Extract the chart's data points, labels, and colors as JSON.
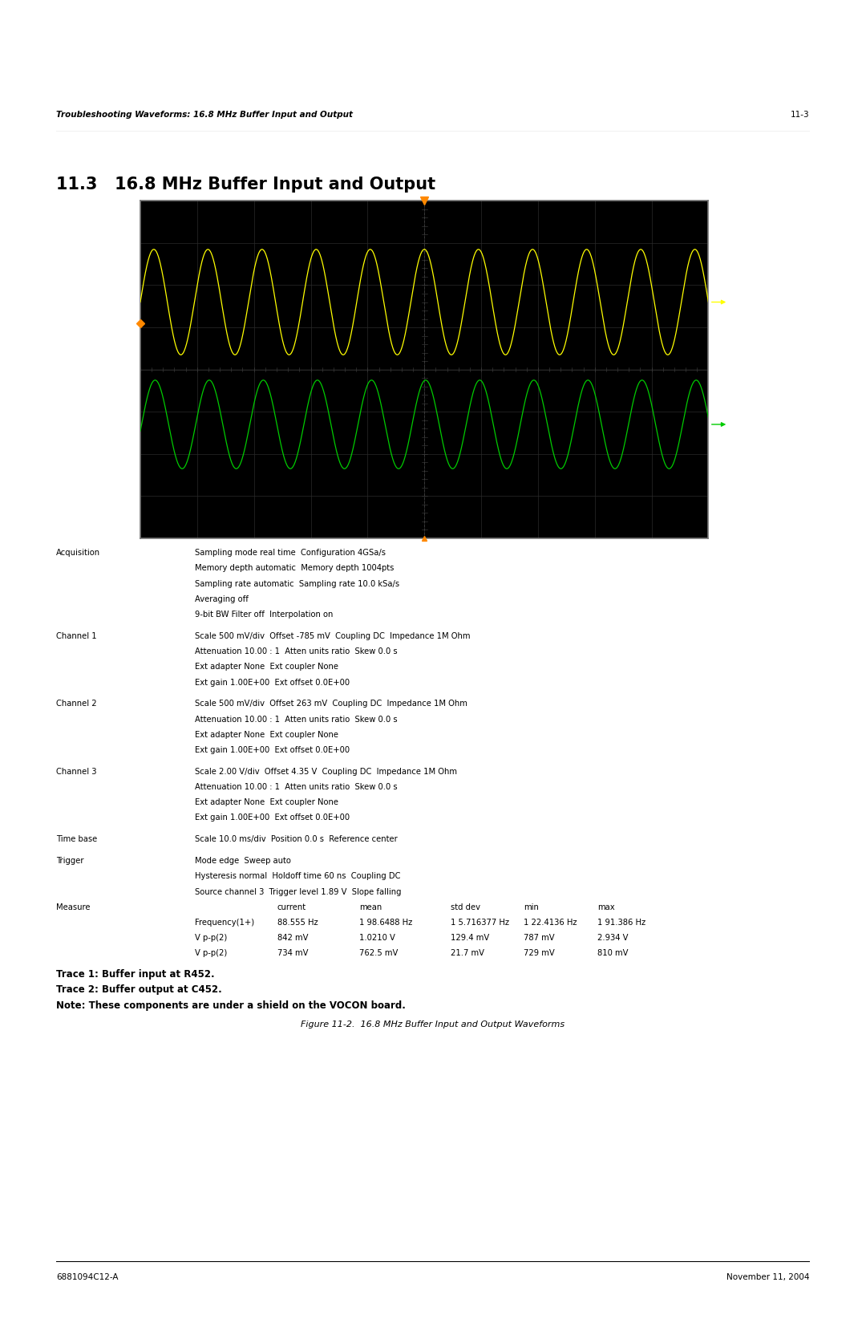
{
  "page_title_left": "Troubleshooting Waveforms: 16.8 MHz Buffer Input and Output",
  "page_title_right": "11-3",
  "section_number": "11.3",
  "section_title": "16.8 MHz Buffer Input and Output",
  "figure_caption": "Figure 11-2.  16.8 MHz Buffer Input and Output Waveforms",
  "trace1_label": "Trace 1: Buffer input at R452.",
  "trace2_label": "Trace 2: Buffer output at C452.",
  "note_label": "Note: These components are under a shield on the VOCON board.",
  "footer_left": "6881094C12-A",
  "footer_right": "November 11, 2004",
  "scope_bg": "#000000",
  "trace1_color": "#ffff00",
  "trace2_color": "#00cc00",
  "trigger_color": "#ff8800",
  "acquisition_text": [
    [
      "Acquisition",
      "Sampling mode real time  Configuration 4GSa/s"
    ],
    [
      "",
      "Memory depth automatic  Memory depth 1004pts"
    ],
    [
      "",
      "Sampling rate automatic  Sampling rate 10.0 kSa/s"
    ],
    [
      "",
      "Averaging off"
    ],
    [
      "",
      "9-bit BW Filter off  Interpolation on"
    ]
  ],
  "channel1_text": [
    [
      "Channel 1",
      "Scale 500 mV/div  Offset -785 mV  Coupling DC  Impedance 1M Ohm"
    ],
    [
      "",
      "Attenuation 10.00 : 1  Atten units ratio  Skew 0.0 s"
    ],
    [
      "",
      "Ext adapter None  Ext coupler None"
    ],
    [
      "",
      "Ext gain 1.00E+00  Ext offset 0.0E+00"
    ]
  ],
  "channel2_text": [
    [
      "Channel 2",
      "Scale 500 mV/div  Offset 263 mV  Coupling DC  Impedance 1M Ohm"
    ],
    [
      "",
      "Attenuation 10.00 : 1  Atten units ratio  Skew 0.0 s"
    ],
    [
      "",
      "Ext adapter None  Ext coupler None"
    ],
    [
      "",
      "Ext gain 1.00E+00  Ext offset 0.0E+00"
    ]
  ],
  "channel3_text": [
    [
      "Channel 3",
      "Scale 2.00 V/div  Offset 4.35 V  Coupling DC  Impedance 1M Ohm"
    ],
    [
      "",
      "Attenuation 10.00 : 1  Atten units ratio  Skew 0.0 s"
    ],
    [
      "",
      "Ext adapter None  Ext coupler None"
    ],
    [
      "",
      "Ext gain 1.00E+00  Ext offset 0.0E+00"
    ]
  ],
  "timebase_text": [
    [
      "Time base",
      "Scale 10.0 ms/div  Position 0.0 s  Reference center"
    ]
  ],
  "trigger_text": [
    [
      "Trigger",
      "Mode edge  Sweep auto"
    ],
    [
      "",
      "Hysteresis normal  Holdoff time 60 ns  Coupling DC"
    ],
    [
      "",
      "Source channel 3  Trigger level 1.89 V  Slope falling"
    ]
  ],
  "measure_label": "Measure",
  "measure_header": [
    "",
    "current",
    "mean",
    "std dev",
    "min",
    "max"
  ],
  "measure_rows": [
    [
      "Frequency(1+)",
      "88.555 Hz",
      "1 98.6488 Hz",
      "1 5.716377 Hz",
      "1 22.4136 Hz",
      "1 91.386 Hz"
    ],
    [
      "V p-p(2)",
      "842 mV",
      "1.0210 V",
      "129.4 mV",
      "787 mV",
      "2.934 V"
    ],
    [
      "V p-p(2)",
      "734 mV",
      "762.5 mV",
      "21.7 mV",
      "729 mV",
      "810 mV"
    ]
  ]
}
